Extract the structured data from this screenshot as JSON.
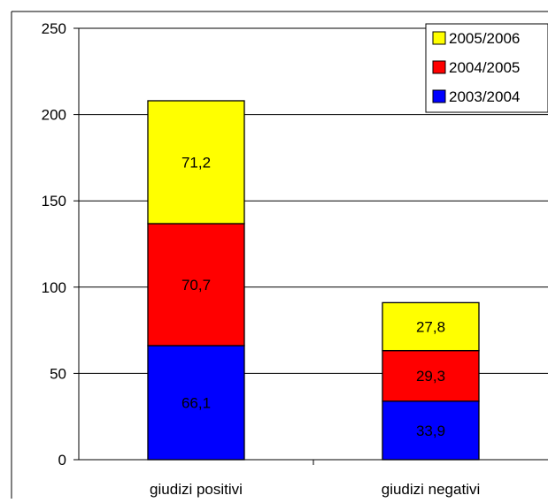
{
  "chart_data": {
    "type": "bar",
    "stacked": true,
    "categories": [
      "giudizi positivi",
      "giudizi negativi"
    ],
    "series": [
      {
        "name": "2003/2004",
        "color": "#0000FF",
        "values": [
          66.1,
          33.9
        ],
        "labels": [
          "66,1",
          "33,9"
        ],
        "label_color": "#000000"
      },
      {
        "name": "2004/2005",
        "color": "#FF0000",
        "values": [
          70.7,
          29.3
        ],
        "labels": [
          "70,7",
          "29,3"
        ],
        "label_color": "#000000"
      },
      {
        "name": "2005/2006",
        "color": "#FFFF00",
        "values": [
          71.2,
          27.8
        ],
        "labels": [
          "71,2",
          "27,8"
        ],
        "label_color": "#000000"
      }
    ],
    "ylim": [
      0,
      250
    ],
    "yticks": [
      0,
      50,
      100,
      150,
      200,
      250
    ],
    "grid": true,
    "legend": {
      "position": "top-right",
      "order": [
        "2005/2006",
        "2004/2005",
        "2003/2004"
      ]
    },
    "title": "",
    "xlabel": "",
    "ylabel": ""
  }
}
